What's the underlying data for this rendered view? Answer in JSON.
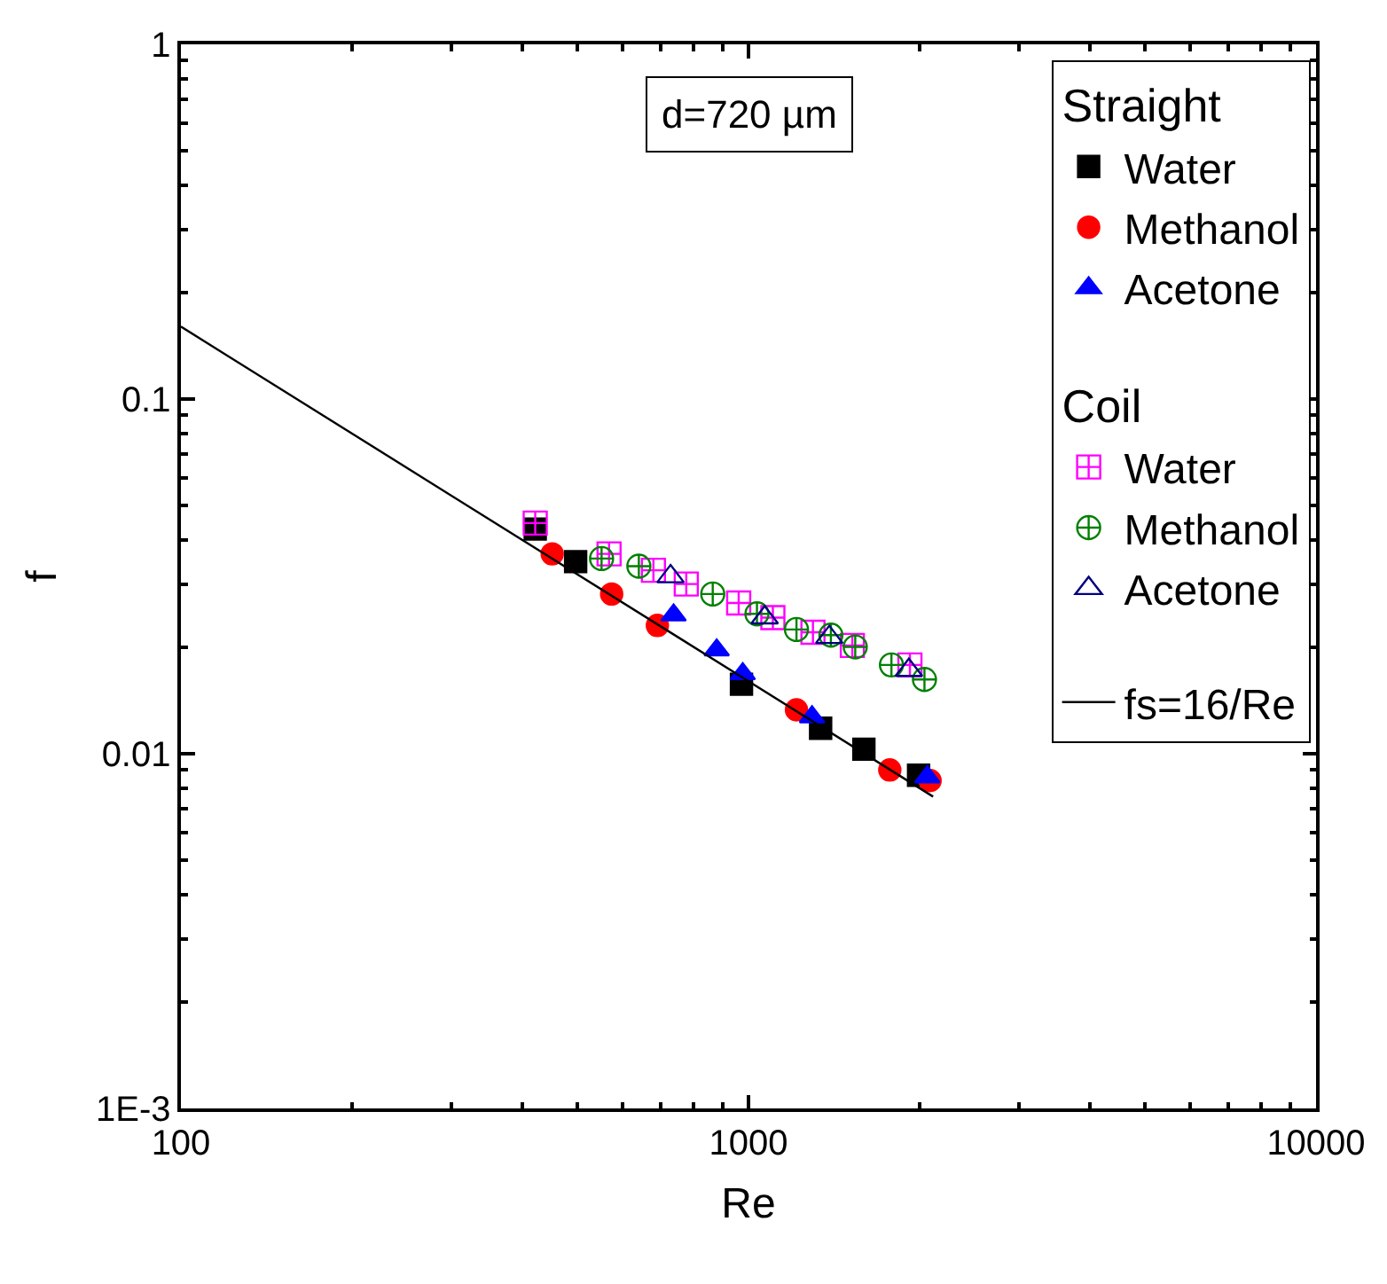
{
  "chart_data": {
    "type": "scatter",
    "xlabel": "Re",
    "ylabel": "f",
    "log": "xy",
    "xlim": [
      100,
      10000
    ],
    "xticks": [
      100,
      1000,
      10000
    ],
    "ylim": [
      0.001,
      1
    ],
    "yticks": [
      {
        "value": 0.001,
        "label": "1E-3"
      },
      0.01,
      0.1,
      1
    ],
    "legend": "top right",
    "annotations": [
      "d=720 µm",
      "Straight",
      "Coil"
    ],
    "series": [
      {
        "name": "Water",
        "color": "#000000",
        "marker": "square",
        "x": [
          421,
          496,
          972,
          1340,
          1597,
          1994
        ],
        "values": [
          0.043,
          0.0348,
          0.0157,
          0.0118,
          0.0103,
          0.0087
        ]
      },
      {
        "name": "Methanol",
        "color": "#ff0000",
        "marker": "circle",
        "x": [
          451,
          574,
          691,
          1215,
          1774,
          2089
        ],
        "values": [
          0.0366,
          0.0282,
          0.023,
          0.0133,
          0.009,
          0.0084
        ]
      },
      {
        "name": "Acetone",
        "color": "#0000ff",
        "marker": "triangle",
        "x": [
          738,
          879,
          977,
          1294,
          2066
        ],
        "values": [
          0.0246,
          0.0196,
          0.0168,
          0.0127,
          0.0086
        ]
      },
      {
        "name": "Water",
        "color": "#ff00ff",
        "marker": "cross",
        "x": [
          421,
          568,
          680,
          777,
          961,
          1104,
          1299,
          1524,
          1925
        ],
        "values": [
          0.0447,
          0.0366,
          0.0329,
          0.0301,
          0.0266,
          0.0242,
          0.022,
          0.0202,
          0.0178
        ]
      },
      {
        "name": "Methanol",
        "color": "#008000",
        "marker": "cross",
        "x": [
          551,
          641,
          865,
          1035,
          1215,
          1397,
          1542,
          1786,
          2042
        ],
        "values": [
          0.0355,
          0.0338,
          0.0282,
          0.0248,
          0.0224,
          0.0216,
          0.02,
          0.0178,
          0.0162
        ]
      },
      {
        "name": "Acetone",
        "color": "#000080",
        "marker": "triangle",
        "x": [
          729,
          1068,
          1388,
          1917
        ],
        "values": [
          0.0316,
          0.0242,
          0.0213,
          0.0172
        ]
      },
      {
        "name": "fs=16/Re",
        "type": "line",
        "color": "#000000",
        "marker": "none",
        "line_style": "solid",
        "x": [
          100,
          2115
        ],
        "values": [
          0.16,
          0.00757
        ]
      }
    ]
  }
}
